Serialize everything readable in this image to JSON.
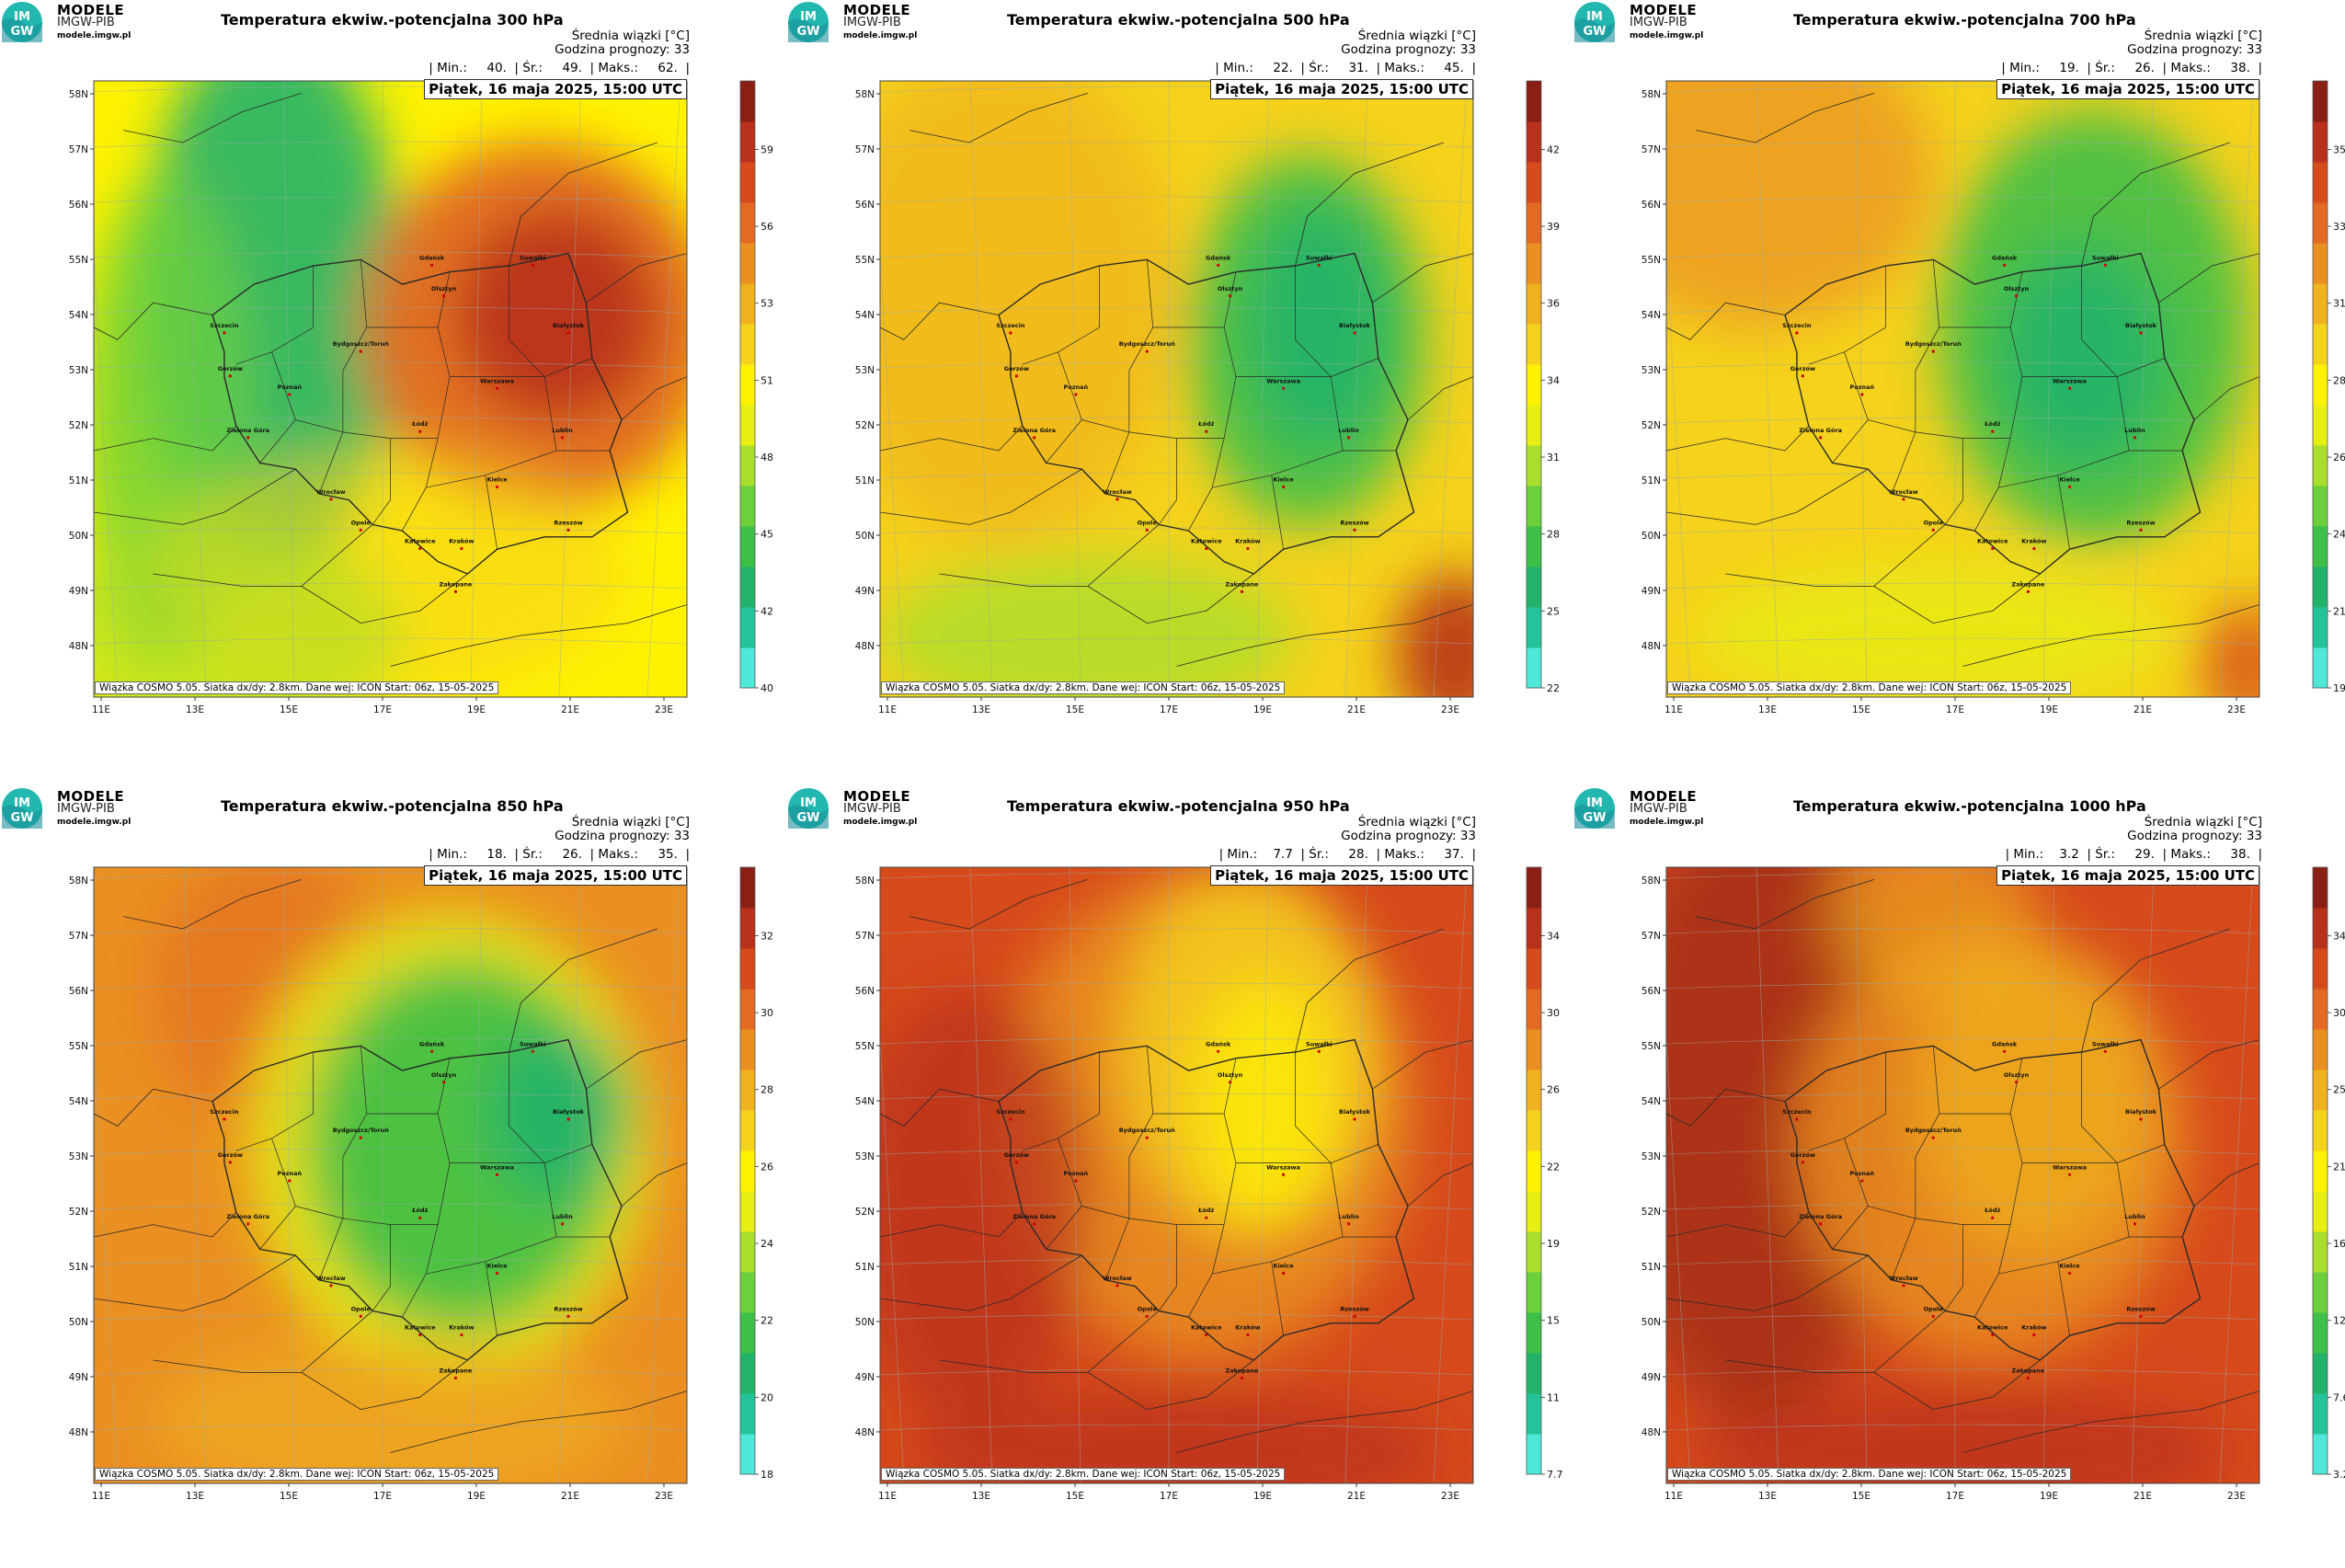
{
  "logo": {
    "title": "MODELE",
    "sub": "IMGW-PIB",
    "url": "modele.imgw.pl",
    "mark_top": "IM",
    "mark_bottom": "GW"
  },
  "common": {
    "info_line1": "Średnia wiązki [°C]",
    "info_line2": "Godzina prognozy: 33",
    "date": "Piątek, 16 maja 2025, 15:00 UTC",
    "credit": "Wiązka COSMO 5.05. Siatka dx/dy: 2.8km. Dane wej: ICON Start: 06z, 15-05-2025",
    "lat_labels": [
      "58N",
      "57N",
      "56N",
      "55N",
      "54N",
      "53N",
      "52N",
      "51N",
      "50N",
      "49N",
      "48N"
    ],
    "lon_labels": [
      "11E",
      "13E",
      "15E",
      "17E",
      "19E",
      "21E",
      "23E"
    ]
  },
  "cities": [
    "Gdańsk",
    "Olsztyn",
    "Suwałki",
    "Szczecin",
    "Białystok",
    "Bydgoszcz/Toruń",
    "Gorzów",
    "Poznań",
    "Warszawa",
    "Zielona Góra",
    "Łódź",
    "Lublin",
    "Wrocław",
    "Kielce",
    "Opole",
    "Rzeszów",
    "Katowice",
    "Kraków",
    "Zakopane"
  ],
  "colors": {
    "scale": [
      "#4fe8d8",
      "#23c49a",
      "#22b26a",
      "#3dbf48",
      "#6ccf3c",
      "#a9de2c",
      "#e6ee12",
      "#fff200",
      "#f5d21c",
      "#f0b21e",
      "#ea8f22",
      "#e26a22",
      "#d64a1c",
      "#b8311a",
      "#8a2014"
    ]
  },
  "panels": [
    {
      "title": "Temperatura ekwiw.-potencjalna 300 hPa",
      "stats": "| Min.:     40.  | Śr.:     49.  | Maks.:     62.  |",
      "colorbar_labels": [
        "40",
        "42",
        "45",
        "48",
        "51",
        "53",
        "56",
        "59"
      ]
    },
    {
      "title": "Temperatura ekwiw.-potencjalna 500 hPa",
      "stats": "| Min.:     22.  | Śr.:     31.  | Maks.:     45.  |",
      "colorbar_labels": [
        "22",
        "25",
        "28",
        "31",
        "34",
        "36",
        "39",
        "42"
      ]
    },
    {
      "title": "Temperatura ekwiw.-potencjalna 700 hPa",
      "stats": "| Min.:     19.  | Śr.:     26.  | Maks.:     38.  |",
      "colorbar_labels": [
        "19",
        "21",
        "24",
        "26",
        "28",
        "31",
        "33",
        "35"
      ]
    },
    {
      "title": "Temperatura ekwiw.-potencjalna 850 hPa",
      "stats": "| Min.:     18.  | Śr.:     26.  | Maks.:     35.  |",
      "colorbar_labels": [
        "18",
        "20",
        "22",
        "24",
        "26",
        "28",
        "30",
        "32"
      ]
    },
    {
      "title": "Temperatura ekwiw.-potencjalna 950 hPa",
      "stats": "| Min.:    7.7  | Śr.:     28.  | Maks.:     37.  |",
      "colorbar_labels": [
        "7.7",
        "11",
        "15",
        "19",
        "22",
        "26",
        "30",
        "34"
      ]
    },
    {
      "title": "Temperatura ekwiw.-potencjalna 1000 hPa",
      "stats": "| Min.:    3.2  | Śr.:     29.  | Maks.:     38.  |",
      "colorbar_labels": [
        "3.2",
        "7.6",
        "12",
        "16",
        "21",
        "25",
        "30",
        "34"
      ]
    }
  ]
}
